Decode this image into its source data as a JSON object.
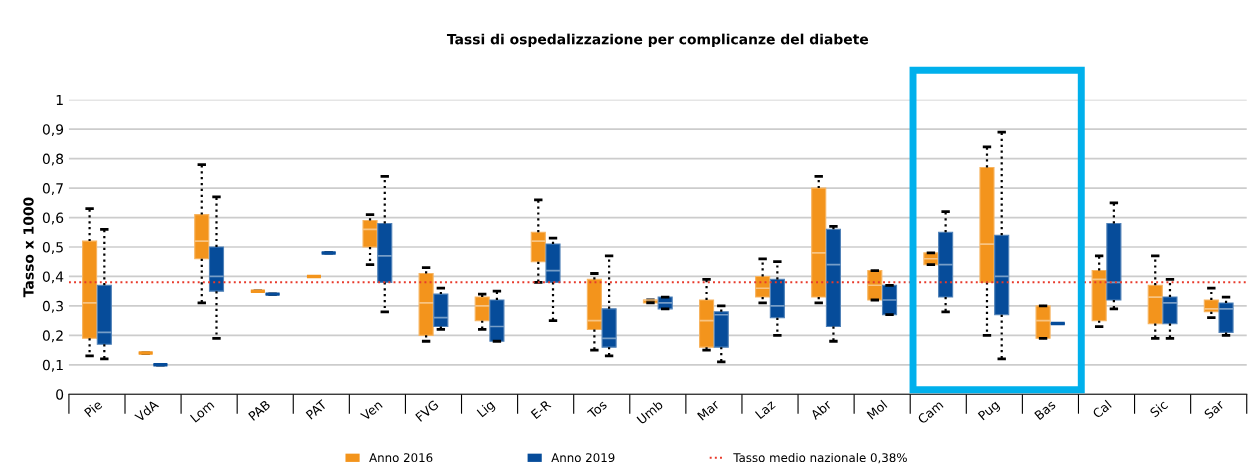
{
  "chart_data": {
    "type": "box",
    "title": "Tassi di ospedalizzazione per complicanze del diabete",
    "ylabel": "Tasso x 1000",
    "categories": [
      "Pie",
      "VdA",
      "Lom",
      "PAB",
      "PAT",
      "Ven",
      "FVG",
      "Lig",
      "E-R",
      "Tos",
      "Umb",
      "Mar",
      "Laz",
      "Abr",
      "Mol",
      "Cam",
      "Pug",
      "Bas",
      "Cal",
      "Sic",
      "Sar"
    ],
    "ylim": [
      0,
      1
    ],
    "yticks": [
      0,
      {
        "value": 0.1,
        "label": "0,1"
      },
      {
        "value": 0.2,
        "label": "0,2"
      },
      {
        "value": 0.3,
        "label": "0,3"
      },
      {
        "value": 0.4,
        "label": "0,4"
      },
      {
        "value": 0.5,
        "label": "0,5"
      },
      {
        "value": 0.6,
        "label": "0,6"
      },
      {
        "value": 0.7,
        "label": "0,7"
      },
      {
        "value": 0.8,
        "label": "0,8"
      },
      {
        "value": 0.9,
        "label": "0,9"
      },
      1
    ],
    "grid": "y",
    "legend": "bottom",
    "ref_lines": [
      {
        "axis": "y",
        "value": 0.38,
        "label": "Tasso medio nazionale 0,38%",
        "color": "#e8392a",
        "line_style": "dotted"
      }
    ],
    "series": [
      {
        "name": "Anno 2016",
        "color": "#f3941c",
        "boxes": [
          {
            "low": 0.13,
            "q1": 0.19,
            "median": 0.31,
            "q3": 0.52,
            "high": 0.63
          },
          {
            "low": 0.14,
            "q1": 0.14,
            "median": 0.14,
            "q3": 0.14,
            "high": 0.14
          },
          {
            "low": 0.31,
            "q1": 0.46,
            "median": 0.52,
            "q3": 0.61,
            "high": 0.78
          },
          {
            "low": 0.35,
            "q1": 0.35,
            "median": 0.35,
            "q3": 0.35,
            "high": 0.35
          },
          {
            "low": 0.4,
            "q1": 0.4,
            "median": 0.4,
            "q3": 0.4,
            "high": 0.4
          },
          {
            "low": 0.44,
            "q1": 0.5,
            "median": 0.56,
            "q3": 0.59,
            "high": 0.61
          },
          {
            "low": 0.18,
            "q1": 0.2,
            "median": 0.31,
            "q3": 0.41,
            "high": 0.43
          },
          {
            "low": 0.22,
            "q1": 0.25,
            "median": 0.3,
            "q3": 0.33,
            "high": 0.34
          },
          {
            "low": 0.38,
            "q1": 0.45,
            "median": 0.52,
            "q3": 0.55,
            "high": 0.66
          },
          {
            "low": 0.15,
            "q1": 0.22,
            "median": 0.25,
            "q3": 0.39,
            "high": 0.41
          },
          {
            "low": 0.31,
            "q1": 0.31,
            "median": 0.32,
            "q3": 0.32,
            "high": 0.32
          },
          {
            "low": 0.15,
            "q1": 0.16,
            "median": 0.25,
            "q3": 0.32,
            "high": 0.39
          },
          {
            "low": 0.31,
            "q1": 0.33,
            "median": 0.36,
            "q3": 0.4,
            "high": 0.46
          },
          {
            "low": 0.31,
            "q1": 0.33,
            "median": 0.48,
            "q3": 0.7,
            "high": 0.74
          },
          {
            "low": 0.32,
            "q1": 0.32,
            "median": 0.37,
            "q3": 0.42,
            "high": 0.42
          },
          {
            "low": 0.44,
            "q1": 0.44,
            "median": 0.46,
            "q3": 0.48,
            "high": 0.48
          },
          {
            "low": 0.2,
            "q1": 0.38,
            "median": 0.51,
            "q3": 0.77,
            "high": 0.84
          },
          {
            "low": 0.19,
            "q1": 0.19,
            "median": 0.25,
            "q3": 0.3,
            "high": 0.3
          },
          {
            "low": 0.23,
            "q1": 0.25,
            "median": 0.39,
            "q3": 0.42,
            "high": 0.47
          },
          {
            "low": 0.19,
            "q1": 0.24,
            "median": 0.33,
            "q3": 0.37,
            "high": 0.47
          },
          {
            "low": 0.26,
            "q1": 0.28,
            "median": 0.29,
            "q3": 0.32,
            "high": 0.36
          }
        ]
      },
      {
        "name": "Anno 2019",
        "color": "#064c9a",
        "boxes": [
          {
            "low": 0.12,
            "q1": 0.17,
            "median": 0.21,
            "q3": 0.37,
            "high": 0.56
          },
          {
            "low": 0.1,
            "q1": 0.1,
            "median": 0.1,
            "q3": 0.1,
            "high": 0.1
          },
          {
            "low": 0.19,
            "q1": 0.35,
            "median": 0.4,
            "q3": 0.5,
            "high": 0.67
          },
          {
            "low": 0.34,
            "q1": 0.34,
            "median": 0.34,
            "q3": 0.34,
            "high": 0.34
          },
          {
            "low": 0.48,
            "q1": 0.48,
            "median": 0.48,
            "q3": 0.48,
            "high": 0.48
          },
          {
            "low": 0.28,
            "q1": 0.38,
            "median": 0.47,
            "q3": 0.58,
            "high": 0.74
          },
          {
            "low": 0.22,
            "q1": 0.23,
            "median": 0.26,
            "q3": 0.34,
            "high": 0.36
          },
          {
            "low": 0.18,
            "q1": 0.18,
            "median": 0.23,
            "q3": 0.32,
            "high": 0.35
          },
          {
            "low": 0.25,
            "q1": 0.38,
            "median": 0.42,
            "q3": 0.51,
            "high": 0.53
          },
          {
            "low": 0.13,
            "q1": 0.16,
            "median": 0.19,
            "q3": 0.29,
            "high": 0.47
          },
          {
            "low": 0.29,
            "q1": 0.29,
            "median": 0.31,
            "q3": 0.33,
            "high": 0.33
          },
          {
            "low": 0.11,
            "q1": 0.16,
            "median": 0.27,
            "q3": 0.28,
            "high": 0.3
          },
          {
            "low": 0.2,
            "q1": 0.26,
            "median": 0.3,
            "q3": 0.39,
            "high": 0.45
          },
          {
            "low": 0.18,
            "q1": 0.23,
            "median": 0.44,
            "q3": 0.56,
            "high": 0.57
          },
          {
            "low": 0.27,
            "q1": 0.27,
            "median": 0.32,
            "q3": 0.37,
            "high": 0.37
          },
          {
            "low": 0.28,
            "q1": 0.33,
            "median": 0.44,
            "q3": 0.55,
            "high": 0.62
          },
          {
            "low": 0.12,
            "q1": 0.27,
            "median": 0.4,
            "q3": 0.54,
            "high": 0.89
          },
          {
            "low": 0.24,
            "q1": 0.24,
            "median": 0.24,
            "q3": 0.24,
            "high": 0.24
          },
          {
            "low": 0.29,
            "q1": 0.32,
            "median": 0.38,
            "q3": 0.58,
            "high": 0.65
          },
          {
            "low": 0.19,
            "q1": 0.24,
            "median": 0.31,
            "q3": 0.33,
            "high": 0.39
          },
          {
            "low": 0.2,
            "q1": 0.21,
            "median": 0.29,
            "q3": 0.31,
            "high": 0.33
          }
        ]
      }
    ]
  }
}
